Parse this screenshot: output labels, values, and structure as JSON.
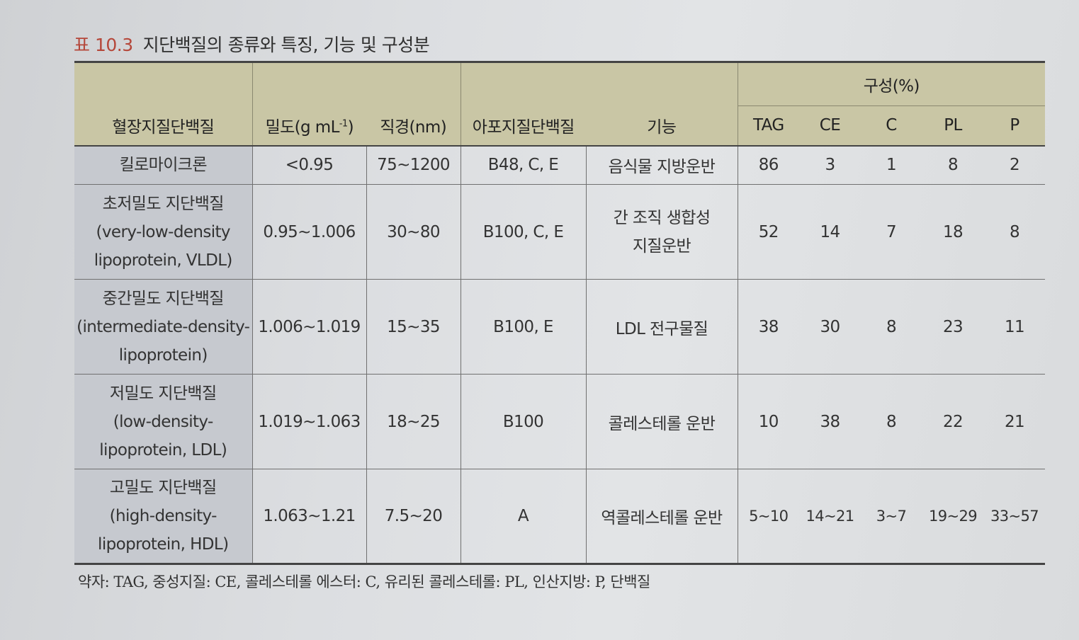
{
  "caption": {
    "number": "표 10.3",
    "title": "지단백질의 종류와 특징, 기능 및 구성분"
  },
  "table": {
    "group_header": "구성(%)",
    "headers": {
      "lipoprotein": "혈장지질단백질",
      "density_base": "밀도(g mL",
      "density_exp": "-1",
      "density_close": ")",
      "diameter": "직경(nm)",
      "apolipoprotein": "아포지질단백질",
      "function": "기능",
      "tag": "TAG",
      "ce": "CE",
      "c": "C",
      "pl": "PL",
      "p": "P"
    },
    "rows": [
      {
        "name_lines": [
          "킬로마이크론"
        ],
        "density": "<0.95",
        "diameter": "75~1200",
        "apo": "B48, C, E",
        "function_lines": [
          "음식물 지방운반"
        ],
        "tag": "86",
        "ce": "3",
        "c": "1",
        "pl": "8",
        "p": "2"
      },
      {
        "name_lines": [
          "초저밀도 지단백질",
          "(very-low-density",
          "lipoprotein, VLDL)"
        ],
        "density": "0.95~1.006",
        "diameter": "30~80",
        "apo": "B100, C, E",
        "function_lines": [
          "간 조직 생합성",
          "지질운반"
        ],
        "tag": "52",
        "ce": "14",
        "c": "7",
        "pl": "18",
        "p": "8"
      },
      {
        "name_lines": [
          "중간밀도 지단백질",
          "(intermediate-density-",
          "lipoprotein)"
        ],
        "density": "1.006~1.019",
        "diameter": "15~35",
        "apo": "B100, E",
        "function_lines": [
          "LDL 전구물질"
        ],
        "tag": "38",
        "ce": "30",
        "c": "8",
        "pl": "23",
        "p": "11"
      },
      {
        "name_lines": [
          "저밀도 지단백질",
          "(low-density-",
          "lipoprotein, LDL)"
        ],
        "density": "1.019~1.063",
        "diameter": "18~25",
        "apo": "B100",
        "function_lines": [
          "콜레스테롤 운반"
        ],
        "tag": "10",
        "ce": "38",
        "c": "8",
        "pl": "22",
        "p": "21"
      },
      {
        "name_lines": [
          "고밀도 지단백질",
          "(high-density-",
          "lipoprotein, HDL)"
        ],
        "density": "1.063~1.21",
        "diameter": "7.5~20",
        "apo": "A",
        "function_lines": [
          "역콜레스테롤 운반"
        ],
        "tag": "5~10",
        "ce": "14~21",
        "c": "3~7",
        "pl": "19~29",
        "p": "33~57"
      }
    ]
  },
  "footnote": "약자: TAG, 중성지질: CE, 콜레스테롤 에스터: C, 유리된 콜레스테롤: PL, 인산지방: P, 단백질"
}
